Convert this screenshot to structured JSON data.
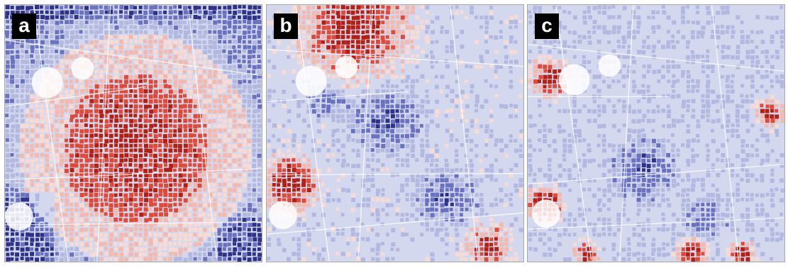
{
  "figure": {
    "panels": [
      {
        "label": "a",
        "pattern": "radial"
      },
      {
        "label": "b",
        "pattern": "mixed-b"
      },
      {
        "label": "c",
        "pattern": "mixed-c"
      }
    ],
    "colors": {
      "dark_red": "#b21f14",
      "red": "#de4a3a",
      "light_red": "#f3b9ae",
      "pale_red": "#f8dbd5",
      "pale_blue": "#d4d8ee",
      "light_blue": "#b2b8e0",
      "blue": "#6a72c0",
      "dark_blue": "#2d3287",
      "line": "#ffffff"
    }
  }
}
